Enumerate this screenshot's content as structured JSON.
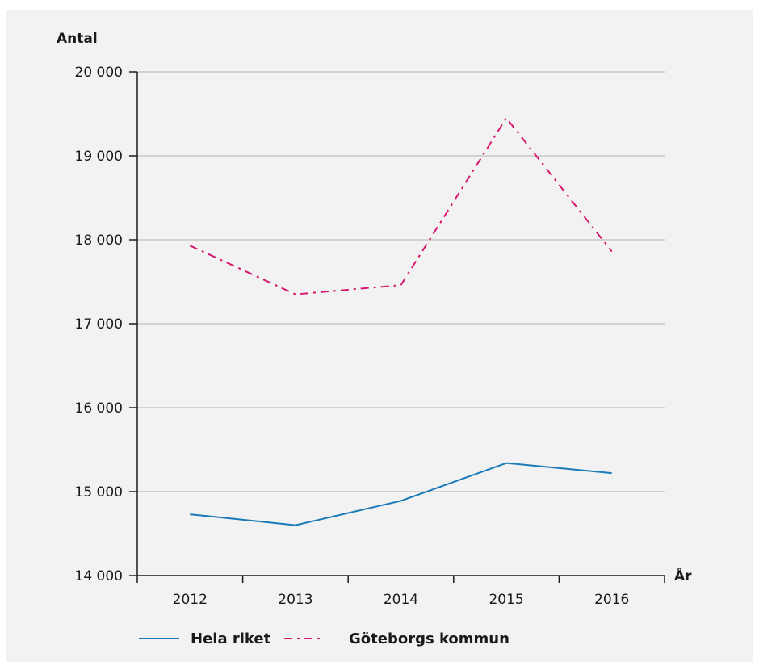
{
  "chart_data": {
    "type": "line",
    "categories": [
      "2012",
      "2013",
      "2014",
      "2015",
      "2016"
    ],
    "series": [
      {
        "name": "Hela riket",
        "values": [
          14730,
          14600,
          14890,
          15340,
          15220
        ],
        "color": "#1a7ab8",
        "dash": "solid"
      },
      {
        "name": "Göteborgs kommun",
        "values": [
          17930,
          17350,
          17460,
          19450,
          17860
        ],
        "color": "#d6176f",
        "dash": "dash-dot"
      }
    ],
    "ylabel": "Antal",
    "xlabel": "År",
    "ylim": [
      14000,
      20000
    ],
    "yticks": [
      14000,
      15000,
      16000,
      17000,
      18000,
      19000,
      20000
    ],
    "ytick_labels": [
      "14 000",
      "15 000",
      "16 000",
      "17 000",
      "18 000",
      "19 000",
      "20 000"
    ],
    "grid": true,
    "legend_position": "bottom",
    "gridline_color": "#b3b3b3"
  }
}
